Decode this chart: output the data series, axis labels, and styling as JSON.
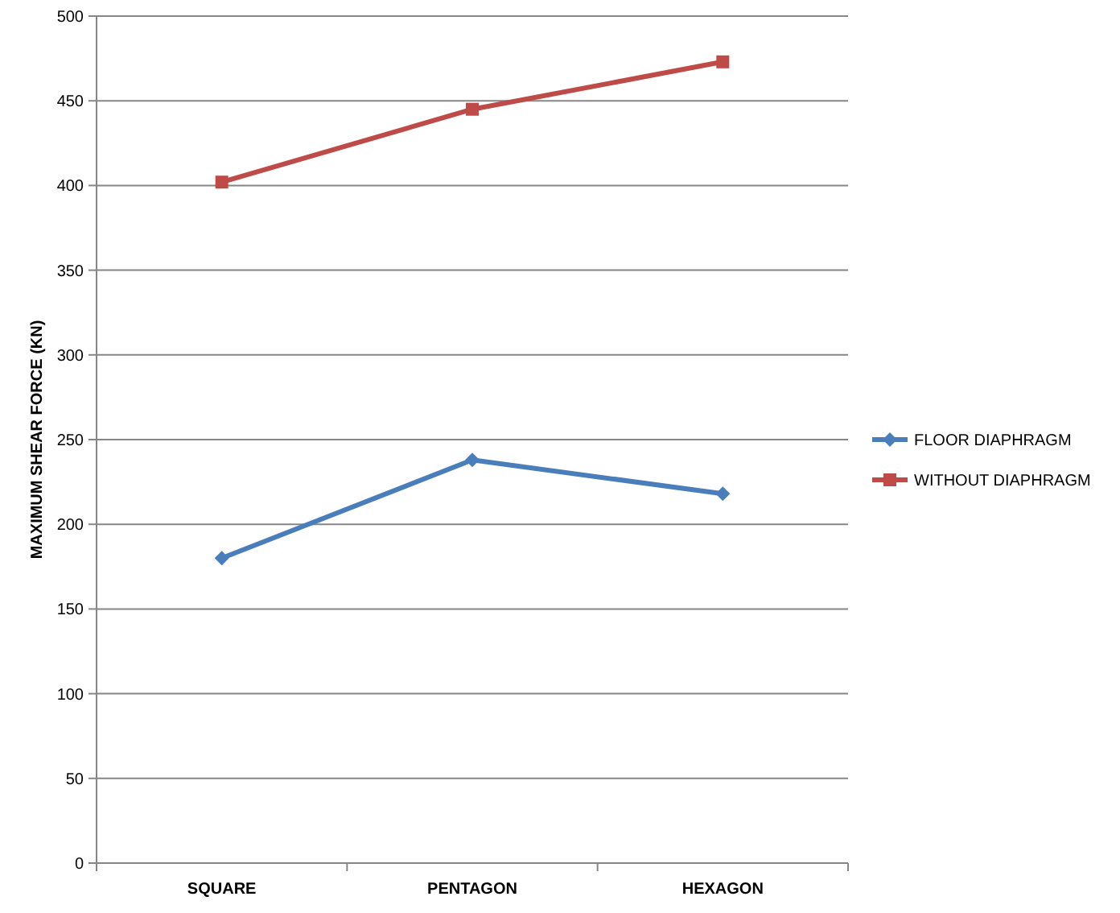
{
  "chart_data": {
    "type": "line",
    "ylabel": "MAXIMUM SHEAR FORCE  (KN)",
    "categories": [
      "SQUARE",
      "PENTAGON",
      "HEXAGON"
    ],
    "series": [
      {
        "name": "FLOOR DIAPHRAGM",
        "color": "#4a7ebb",
        "values": [
          180,
          238,
          218
        ],
        "marker": "diamond"
      },
      {
        "name": "WITHOUT DIAPHRAGM",
        "color": "#be4b48",
        "values": [
          402,
          445,
          473
        ],
        "marker": "square"
      }
    ],
    "ylim": [
      0,
      500
    ],
    "yticks": [
      0,
      50,
      100,
      150,
      200,
      250,
      300,
      350,
      400,
      450,
      500
    ],
    "grid": "y",
    "legend": "right"
  }
}
